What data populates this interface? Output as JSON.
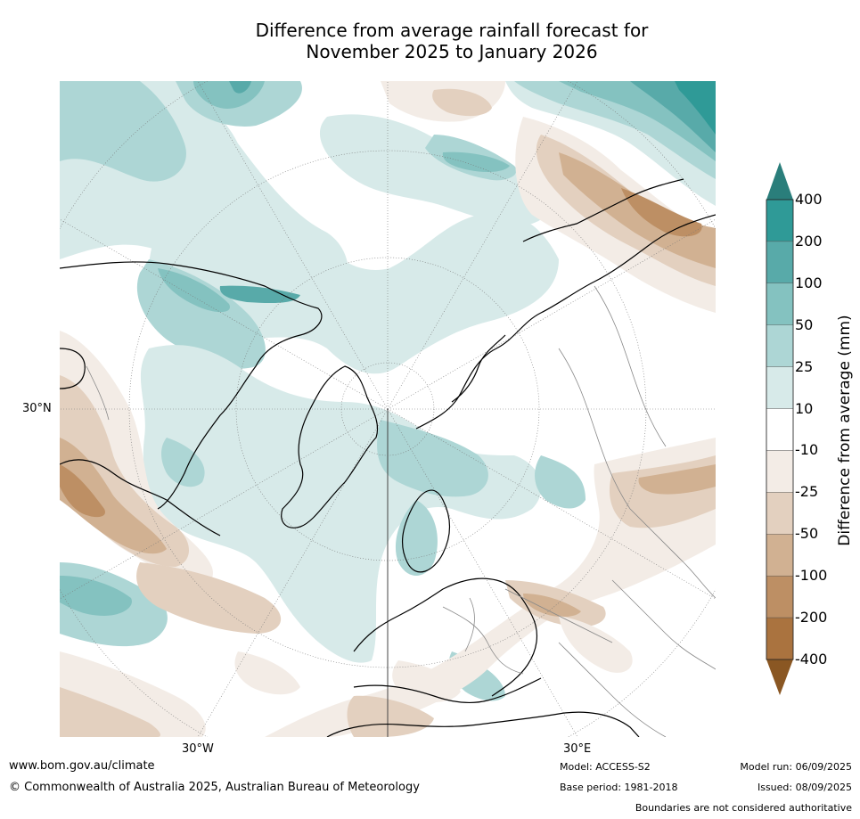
{
  "title": {
    "line1": "Difference from average rainfall forecast for",
    "line2": "November 2025 to January 2026"
  },
  "map": {
    "type": "polar-stereographic rainfall anomaly",
    "region": "Northern Hemisphere",
    "labels": {
      "lat_30n": "30°N",
      "lon_30w": "30°W",
      "lon_30e": "30°E"
    }
  },
  "colorbar": {
    "title": "Difference from average (mm)",
    "levels": [
      "400",
      "200",
      "100",
      "50",
      "25",
      "10",
      "-10",
      "-25",
      "-50",
      "-100",
      "-200",
      "-400"
    ],
    "colors": [
      "#2e8e8c",
      "#2f9a97",
      "#58aaa9",
      "#84c2c0",
      "#add6d5",
      "#d7eae9",
      "#ffffff",
      "#f3ece6",
      "#e3d0bf",
      "#d1b192",
      "#bd8f64",
      "#aa733f",
      "#8f5a28"
    ],
    "extend_colors": {
      "top": "#2a7e7b",
      "bottom": "#8a5723"
    }
  },
  "footer": {
    "url": "www.bom.gov.au/climate",
    "copyright": "© Commonwealth of Australia 2025, Australian Bureau of Meteorology",
    "model": "Model: ACCESS-S2",
    "base_period": "Base period: 1981-2018",
    "model_run": "Model run: 06/09/2025",
    "issued": "Issued: 08/09/2025",
    "boundaries": "Boundaries are not considered authoritative"
  }
}
